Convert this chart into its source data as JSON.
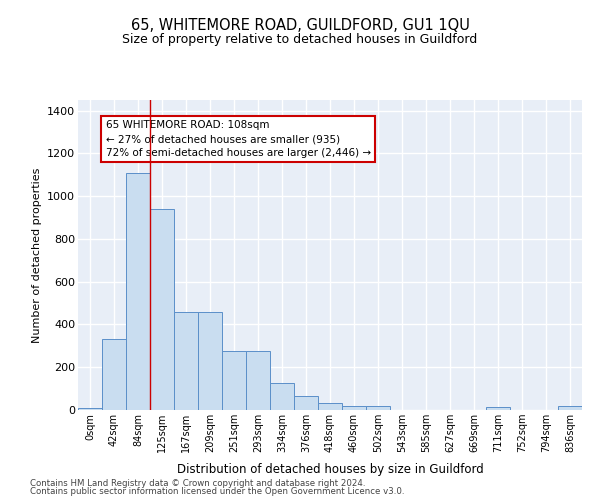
{
  "title": "65, WHITEMORE ROAD, GUILDFORD, GU1 1QU",
  "subtitle": "Size of property relative to detached houses in Guildford",
  "xlabel": "Distribution of detached houses by size in Guildford",
  "ylabel": "Number of detached properties",
  "bar_color": "#c9ddf0",
  "bar_edge_color": "#5b8fc9",
  "background_color": "#e8eef7",
  "grid_color": "#ffffff",
  "categories": [
    "0sqm",
    "42sqm",
    "84sqm",
    "125sqm",
    "167sqm",
    "209sqm",
    "251sqm",
    "293sqm",
    "334sqm",
    "376sqm",
    "418sqm",
    "460sqm",
    "502sqm",
    "543sqm",
    "585sqm",
    "627sqm",
    "669sqm",
    "711sqm",
    "752sqm",
    "794sqm",
    "836sqm"
  ],
  "values": [
    8,
    330,
    1110,
    940,
    460,
    460,
    275,
    275,
    125,
    65,
    35,
    20,
    20,
    0,
    0,
    0,
    0,
    15,
    0,
    0,
    20
  ],
  "ylim": [
    0,
    1450
  ],
  "yticks": [
    0,
    200,
    400,
    600,
    800,
    1000,
    1200,
    1400
  ],
  "property_line_x": 2.5,
  "annotation_text": "65 WHITEMORE ROAD: 108sqm\n← 27% of detached houses are smaller (935)\n72% of semi-detached houses are larger (2,446) →",
  "footer_line1": "Contains HM Land Registry data © Crown copyright and database right 2024.",
  "footer_line2": "Contains public sector information licensed under the Open Government Licence v3.0."
}
